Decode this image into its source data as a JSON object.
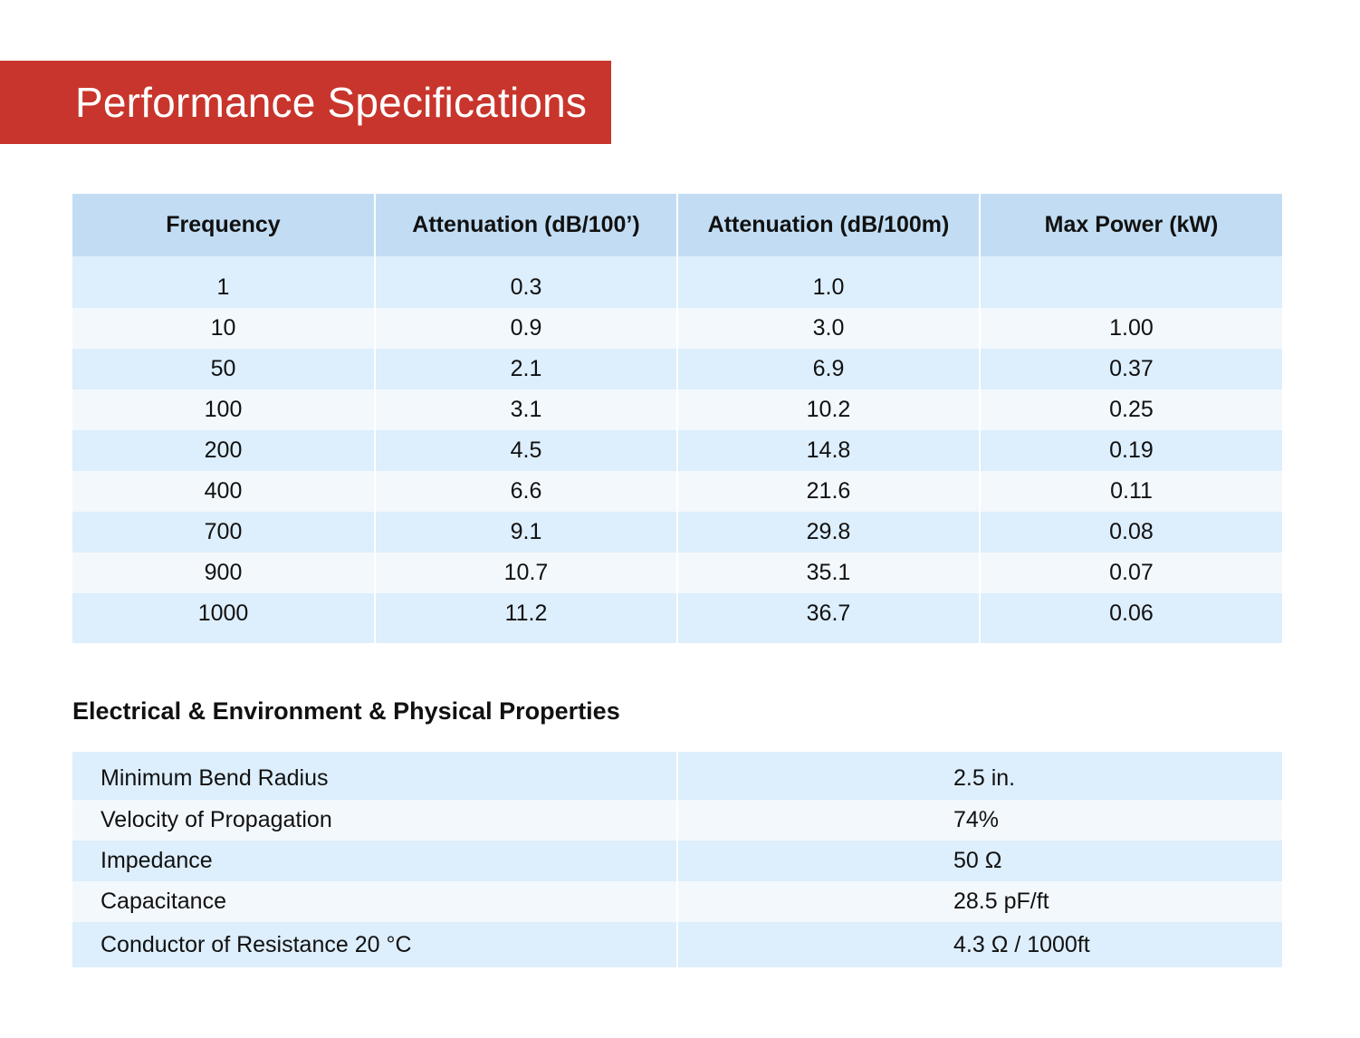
{
  "banner": {
    "title": "Performance Specifications",
    "color": "#c8352c"
  },
  "performance_table": {
    "headers": [
      "Frequency",
      "Attenuation (dB/100’)",
      "Attenuation (dB/100m)",
      "Max Power (kW)"
    ],
    "rows": [
      [
        "1",
        "0.3",
        "1.0",
        ""
      ],
      [
        "10",
        "0.9",
        "3.0",
        "1.00"
      ],
      [
        "50",
        "2.1",
        "6.9",
        "0.37"
      ],
      [
        "100",
        "3.1",
        "10.2",
        "0.25"
      ],
      [
        "200",
        "4.5",
        "14.8",
        "0.19"
      ],
      [
        "400",
        "6.6",
        "21.6",
        "0.11"
      ],
      [
        "700",
        "9.1",
        "29.8",
        "0.08"
      ],
      [
        "900",
        "10.7",
        "35.1",
        "0.07"
      ],
      [
        "1000",
        "11.2",
        "36.7",
        "0.06"
      ]
    ]
  },
  "properties": {
    "heading": "Electrical & Environment & Physical Properties",
    "rows": [
      [
        "Minimum Bend Radius",
        "2.5 in."
      ],
      [
        "Velocity of Propagation",
        "74%"
      ],
      [
        "Impedance",
        "50 Ω"
      ],
      [
        "Capacitance",
        "28.5 pF/ft"
      ],
      [
        "Conductor of Resistance 20 °C",
        "4.3 Ω / 1000ft"
      ]
    ]
  },
  "colors": {
    "header_bg": "#c2ddf3",
    "row_dark": "#ddeefc",
    "row_light": "#f3f8fd"
  }
}
